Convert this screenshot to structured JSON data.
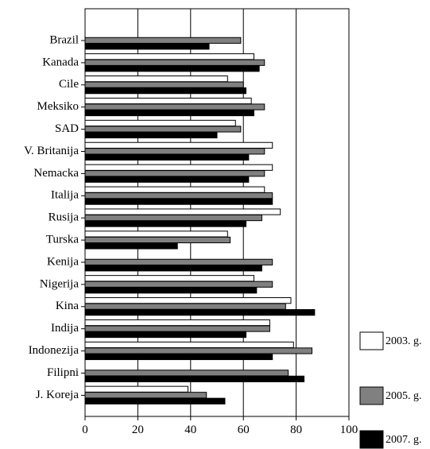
{
  "chart_data": {
    "type": "bar",
    "orientation": "horizontal",
    "categories": [
      "Brazil",
      "Kanada",
      "Cile",
      "Meksiko",
      "SAD",
      "V. Britanija",
      "Nemacka",
      "Italija",
      "Rusija",
      "Turska",
      "Kenija",
      "Nigerija",
      "Kina",
      "Indija",
      "Indonezija",
      "Filipni",
      "J. Koreja"
    ],
    "series": [
      {
        "name": "2003. g.",
        "color": "#ffffff",
        "values": [
          null,
          64,
          54,
          63,
          57,
          71,
          71,
          68,
          74,
          54,
          null,
          64,
          78,
          70,
          79,
          null,
          39
        ]
      },
      {
        "name": "2005. g.",
        "color": "#808080",
        "values": [
          59,
          68,
          60,
          68,
          59,
          68,
          68,
          71,
          67,
          55,
          71,
          71,
          76,
          70,
          86,
          77,
          46
        ]
      },
      {
        "name": "2007. g.",
        "color": "#000000",
        "values": [
          47,
          66,
          61,
          64,
          50,
          62,
          62,
          71,
          61,
          35,
          67,
          65,
          87,
          61,
          71,
          83,
          53
        ]
      }
    ],
    "xlim": [
      0,
      100
    ],
    "xticks": [
      "0",
      "20",
      "40",
      "60",
      "80",
      "100"
    ],
    "grid": true,
    "legend": "right"
  }
}
